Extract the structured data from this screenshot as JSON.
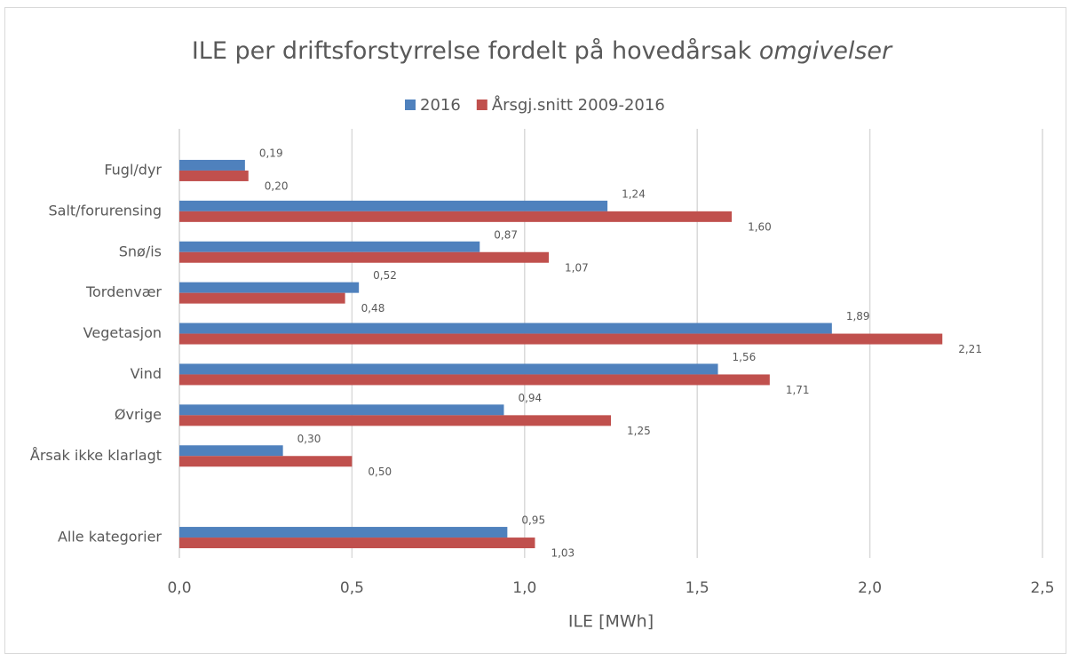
{
  "chart_data": {
    "type": "bar",
    "orientation": "horizontal",
    "title": "ILE per driftsforstyrrelse fordelt på hovedårsak",
    "title_italic": "omgivelser",
    "x_label": "ILE [MWh]",
    "categories": [
      "Fugl/dyr",
      "Salt/forurensing",
      "Snø/is",
      "Tordenvær",
      "Vegetasjon",
      "Vind",
      "Øvrige",
      "Årsak ikke klarlagt",
      null,
      "Alle kategorier"
    ],
    "series": [
      {
        "name": "2016",
        "color": "#4f81bd",
        "values": [
          0.19,
          1.24,
          0.87,
          0.52,
          1.89,
          1.56,
          0.94,
          0.3,
          null,
          0.95
        ],
        "value_labels": [
          "0,19",
          "1,24",
          "0,87",
          "0,52",
          "1,89",
          "1,56",
          "0,94",
          "0,30",
          null,
          "0,95"
        ]
      },
      {
        "name": "Årsgj.snitt 2009-2016",
        "color": "#c0504d",
        "values": [
          0.2,
          1.6,
          1.07,
          0.48,
          2.21,
          1.71,
          1.25,
          0.5,
          null,
          1.03
        ],
        "value_labels": [
          "0,20",
          "1,60",
          "1,07",
          "0,48",
          "2,21",
          "1,71",
          "1,25",
          "0,50",
          null,
          "1,03"
        ]
      }
    ],
    "xlim": [
      0,
      2.5
    ],
    "xticks": [
      {
        "value": 0,
        "label": "0,0"
      },
      {
        "value": 0.5,
        "label": "0,5"
      },
      {
        "value": 1,
        "label": "1,0"
      },
      {
        "value": 1.5,
        "label": "1,5"
      },
      {
        "value": 2,
        "label": "2,0"
      },
      {
        "value": 2.5,
        "label": "2,5"
      }
    ],
    "grid": true,
    "legend": "top"
  }
}
